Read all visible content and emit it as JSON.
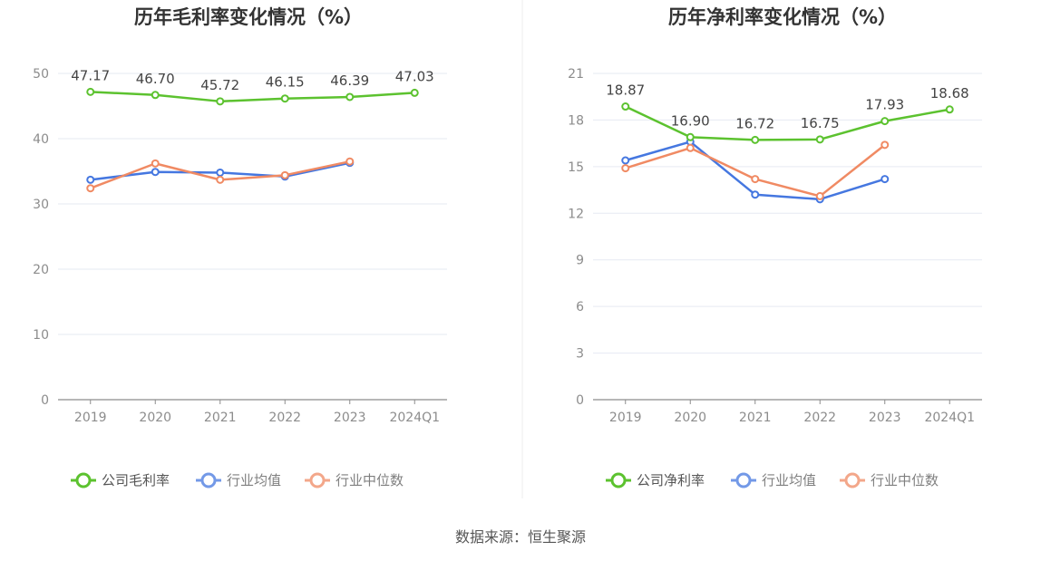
{
  "source": "数据来源：恒生聚源",
  "colors": {
    "company": "#5cc22f",
    "avg": "#4577e0",
    "median": "#f08a63",
    "grid": "#e6e9f2",
    "axis": "#8c8c8c"
  },
  "chart_data": [
    {
      "type": "line",
      "title": "历年毛利率变化情况（%）",
      "categories": [
        "2019",
        "2020",
        "2021",
        "2022",
        "2023",
        "2024Q1"
      ],
      "ylim": [
        0,
        50
      ],
      "yticks": [
        0,
        10,
        20,
        30,
        40,
        50
      ],
      "grid": true,
      "legend_position": "bottom",
      "series": [
        {
          "name": "公司毛利率",
          "key": "company",
          "values": [
            47.17,
            46.7,
            45.72,
            46.15,
            46.39,
            47.03
          ],
          "labels": [
            "47.17",
            "46.70",
            "45.72",
            "46.15",
            "46.39",
            "47.03"
          ]
        },
        {
          "name": "行业均值",
          "key": "avg",
          "values": [
            33.7,
            34.9,
            34.8,
            34.2,
            36.3,
            null
          ]
        },
        {
          "name": "行业中位数",
          "key": "median",
          "values": [
            32.4,
            36.2,
            33.7,
            34.4,
            36.5,
            null
          ]
        }
      ]
    },
    {
      "type": "line",
      "title": "历年净利率变化情况（%）",
      "categories": [
        "2019",
        "2020",
        "2021",
        "2022",
        "2023",
        "2024Q1"
      ],
      "ylim": [
        0,
        21
      ],
      "yticks": [
        0,
        3,
        6,
        9,
        12,
        15,
        18,
        21
      ],
      "grid": true,
      "legend_position": "bottom",
      "series": [
        {
          "name": "公司净利率",
          "key": "company",
          "values": [
            18.87,
            16.9,
            16.72,
            16.75,
            17.93,
            18.68
          ],
          "labels": [
            "18.87",
            "16.90",
            "16.72",
            "16.75",
            "17.93",
            "18.68"
          ]
        },
        {
          "name": "行业均值",
          "key": "avg",
          "values": [
            15.4,
            16.6,
            13.2,
            12.9,
            14.2,
            null
          ]
        },
        {
          "name": "行业中位数",
          "key": "median",
          "values": [
            14.9,
            16.2,
            14.2,
            13.1,
            16.4,
            null
          ]
        }
      ]
    }
  ]
}
